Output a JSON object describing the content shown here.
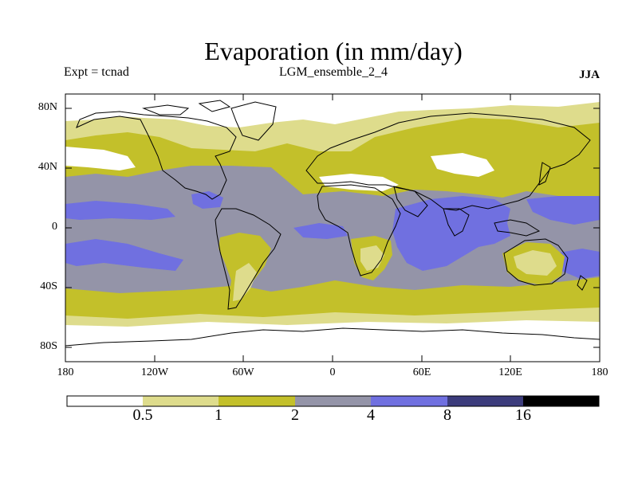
{
  "title": "Evaporation (in mm/day)",
  "expt_label": "Expt = tcnad",
  "ensemble_label": "LGM_ensemble_2_4",
  "season_label": "JJA",
  "lat_ticks": [
    "80N",
    "40N",
    "0",
    "40S",
    "80S"
  ],
  "lon_ticks": [
    "180",
    "120W",
    "60W",
    "0",
    "60E",
    "120E",
    "180"
  ],
  "colorbar": {
    "labels": [
      "0.5",
      "1",
      "2",
      "4",
      "8",
      "16"
    ],
    "colors": [
      "#ffffff",
      "#dedc8c",
      "#c3c02a",
      "#9494a8",
      "#7070e0",
      "#3c3c7c",
      "#000000"
    ]
  },
  "map": {
    "lat_range": [
      -90,
      90
    ],
    "lon_range": [
      -180,
      180
    ],
    "contour_levels_mm_per_day": [
      0.5,
      1,
      2,
      4,
      8,
      16
    ]
  }
}
